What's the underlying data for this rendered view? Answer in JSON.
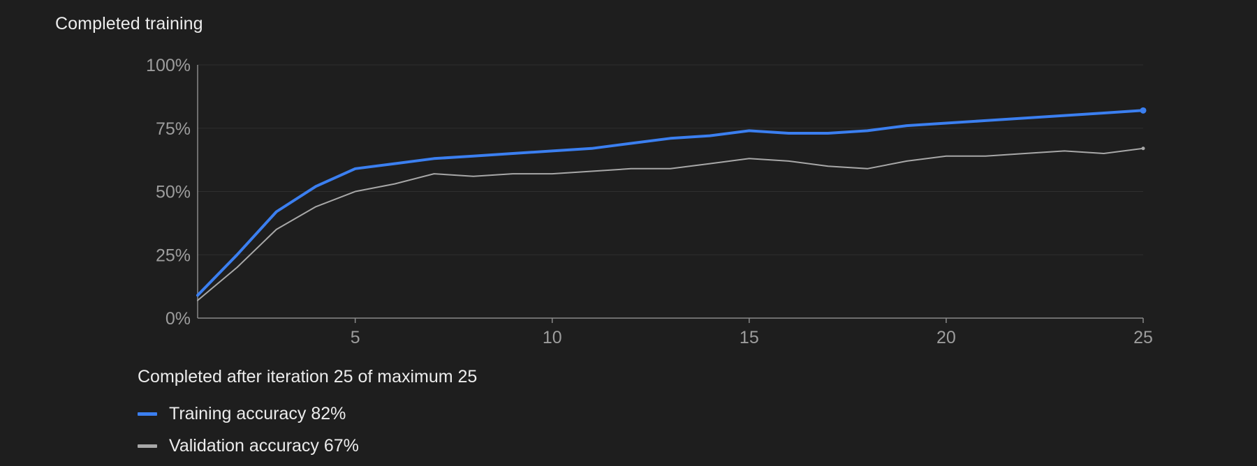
{
  "header": {
    "title": "Completed training"
  },
  "status": {
    "text": "Completed after iteration 25 of maximum 25"
  },
  "legend": {
    "items": [
      {
        "label": "Training accuracy 82%",
        "color": "#3b7ff0"
      },
      {
        "label": "Validation accuracy 67%",
        "color": "#a8a8a8"
      }
    ]
  },
  "colors": {
    "background": "#1e1e1e",
    "axis": "#8a8a8a",
    "grid": "#2f2f2f",
    "tick_text": "#9d9d9d",
    "training": "#3b7ff0",
    "validation": "#a8a8a8"
  },
  "chart_data": {
    "type": "line",
    "title": "",
    "xlabel": "",
    "ylabel": "",
    "xlim": [
      1,
      25
    ],
    "ylim": [
      0,
      100
    ],
    "x_ticks": [
      5,
      10,
      15,
      20,
      25
    ],
    "y_ticks": [
      0,
      25,
      50,
      75,
      100
    ],
    "y_tick_labels": [
      "0%",
      "25%",
      "50%",
      "75%",
      "100%"
    ],
    "grid": true,
    "legend_position": "bottom-left",
    "x": [
      1,
      2,
      3,
      4,
      5,
      6,
      7,
      8,
      9,
      10,
      11,
      12,
      13,
      14,
      15,
      16,
      17,
      18,
      19,
      20,
      21,
      22,
      23,
      24,
      25
    ],
    "series": [
      {
        "name": "Training accuracy",
        "color": "#3b7ff0",
        "values": [
          9,
          25,
          42,
          52,
          59,
          61,
          63,
          64,
          65,
          66,
          67,
          69,
          71,
          72,
          74,
          73,
          73,
          74,
          76,
          77,
          78,
          79,
          80,
          81,
          82
        ],
        "end_marker": true
      },
      {
        "name": "Validation accuracy",
        "color": "#a8a8a8",
        "values": [
          7,
          20,
          35,
          44,
          50,
          53,
          57,
          56,
          57,
          57,
          58,
          59,
          59,
          61,
          63,
          62,
          60,
          59,
          62,
          64,
          64,
          65,
          66,
          65,
          67
        ],
        "end_marker": true
      }
    ]
  }
}
